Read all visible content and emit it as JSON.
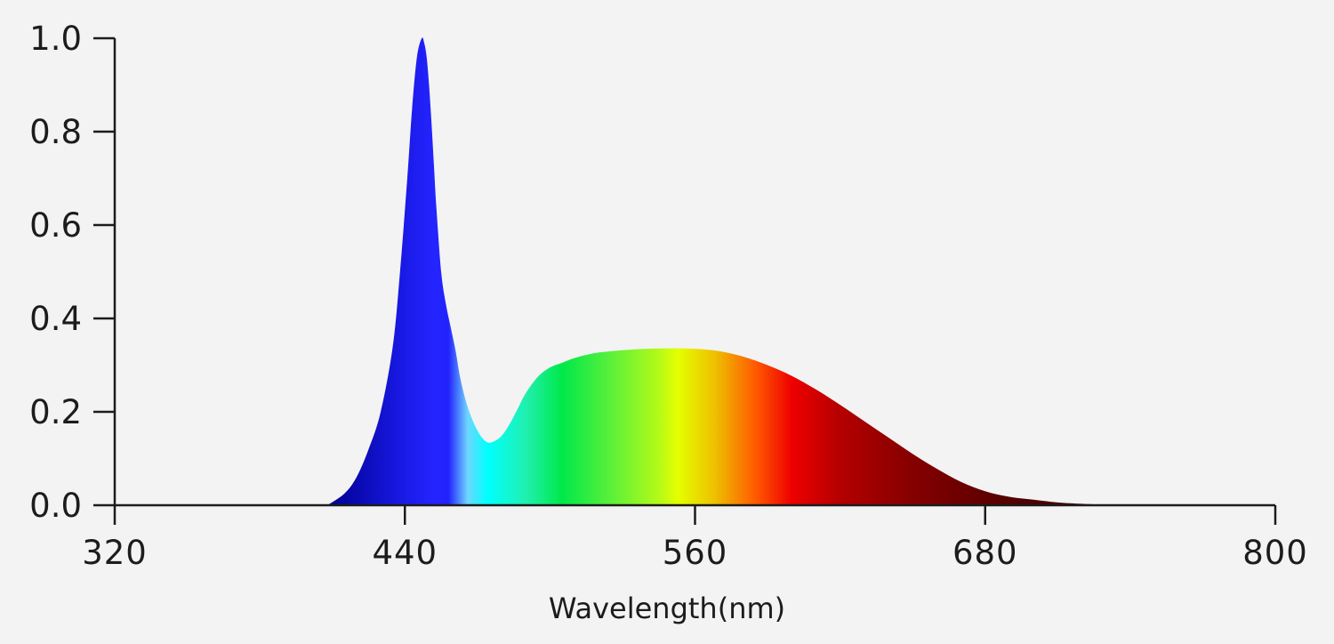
{
  "chart_data": {
    "type": "area",
    "title": "",
    "xlabel": "Wavelength(nm)",
    "ylabel": "",
    "xlim": [
      320,
      800
    ],
    "ylim": [
      0,
      1.0
    ],
    "x_ticks": [
      320,
      440,
      560,
      680,
      800
    ],
    "x_tick_labels": [
      "320",
      "440",
      "560",
      "680",
      "800"
    ],
    "y_ticks": [
      0.0,
      0.2,
      0.4,
      0.6,
      0.8,
      1.0
    ],
    "y_tick_labels": [
      "0.0",
      "0.2",
      "0.4",
      "0.6",
      "0.8",
      "1.0"
    ],
    "grid": false,
    "fill": "visible-spectrum-gradient",
    "series": [
      {
        "x": [
          408,
          415,
          420,
          425,
          430,
          435,
          438,
          441,
          443,
          445,
          447,
          448,
          449,
          450,
          451,
          452,
          453,
          455,
          457,
          459,
          461,
          463,
          466,
          470,
          474,
          478,
          481,
          484,
          487,
          490,
          495,
          500,
          505,
          510,
          515,
          520,
          530,
          540,
          550,
          560,
          570,
          580,
          590,
          600,
          610,
          620,
          630,
          640,
          650,
          660,
          670,
          680,
          690,
          700,
          710,
          720,
          732
        ],
        "y": [
          0.0,
          0.025,
          0.06,
          0.12,
          0.2,
          0.34,
          0.5,
          0.7,
          0.85,
          0.96,
          1.0,
          0.99,
          0.96,
          0.9,
          0.82,
          0.73,
          0.64,
          0.5,
          0.43,
          0.38,
          0.33,
          0.27,
          0.21,
          0.16,
          0.135,
          0.14,
          0.155,
          0.18,
          0.21,
          0.24,
          0.275,
          0.295,
          0.305,
          0.315,
          0.322,
          0.327,
          0.332,
          0.335,
          0.336,
          0.335,
          0.33,
          0.318,
          0.3,
          0.277,
          0.248,
          0.215,
          0.18,
          0.145,
          0.11,
          0.078,
          0.05,
          0.03,
          0.018,
          0.012,
          0.006,
          0.003,
          0.0
        ]
      }
    ],
    "gradient_stops": [
      {
        "at_nm": 408,
        "color": "#00008f"
      },
      {
        "at_nm": 440,
        "color": "#1a1ae8"
      },
      {
        "at_nm": 452,
        "color": "#2424ff"
      },
      {
        "at_nm": 458,
        "color": "#2222ff"
      },
      {
        "at_nm": 466,
        "color": "#6fd6ff"
      },
      {
        "at_nm": 474,
        "color": "#00ffff"
      },
      {
        "at_nm": 490,
        "color": "#20f0b0"
      },
      {
        "at_nm": 505,
        "color": "#00e84a"
      },
      {
        "at_nm": 525,
        "color": "#5af03a"
      },
      {
        "at_nm": 545,
        "color": "#b4fa18"
      },
      {
        "at_nm": 553,
        "color": "#e4ff00"
      },
      {
        "at_nm": 568,
        "color": "#eec100"
      },
      {
        "at_nm": 585,
        "color": "#ff5a00"
      },
      {
        "at_nm": 600,
        "color": "#ee0000"
      },
      {
        "at_nm": 620,
        "color": "#b40000"
      },
      {
        "at_nm": 650,
        "color": "#850000"
      },
      {
        "at_nm": 690,
        "color": "#540000"
      },
      {
        "at_nm": 732,
        "color": "#3a0000"
      }
    ]
  },
  "colors": {
    "background": "#f3f3f3",
    "axis": "#1c1c1c",
    "text": "#1c1c1c"
  }
}
